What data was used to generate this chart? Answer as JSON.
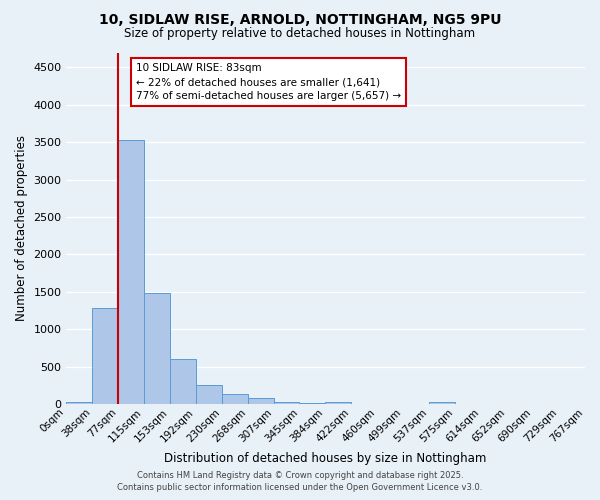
{
  "title_line1": "10, SIDLAW RISE, ARNOLD, NOTTINGHAM, NG5 9PU",
  "title_line2": "Size of property relative to detached houses in Nottingham",
  "xlabel": "Distribution of detached houses by size in Nottingham",
  "ylabel": "Number of detached properties",
  "bar_values": [
    30,
    1280,
    3530,
    1490,
    600,
    250,
    130,
    80,
    30,
    20,
    30,
    0,
    0,
    0,
    30,
    0,
    0,
    0,
    0,
    0
  ],
  "categories": [
    "0sqm",
    "38sqm",
    "77sqm",
    "115sqm",
    "153sqm",
    "192sqm",
    "230sqm",
    "268sqm",
    "307sqm",
    "345sqm",
    "384sqm",
    "422sqm",
    "460sqm",
    "499sqm",
    "537sqm",
    "575sqm",
    "614sqm",
    "652sqm",
    "690sqm",
    "729sqm",
    "767sqm"
  ],
  "bar_color": "#aec6e8",
  "bar_edge_color": "#5b9bd5",
  "vline_color": "#cc0000",
  "vline_x": 1.5,
  "annotation_text": "10 SIDLAW RISE: 83sqm\n← 22% of detached houses are smaller (1,641)\n77% of semi-detached houses are larger (5,657) →",
  "annotation_box_facecolor": "#ffffff",
  "annotation_box_edgecolor": "#cc0000",
  "ylim": [
    0,
    4700
  ],
  "yticks": [
    0,
    500,
    1000,
    1500,
    2000,
    2500,
    3000,
    3500,
    4000,
    4500
  ],
  "bg_color": "#e8f0f8",
  "plot_bg_color": "#e8f0f8",
  "grid_color": "#ffffff",
  "footer_line1": "Contains HM Land Registry data © Crown copyright and database right 2025.",
  "footer_line2": "Contains public sector information licensed under the Open Government Licence v3.0."
}
